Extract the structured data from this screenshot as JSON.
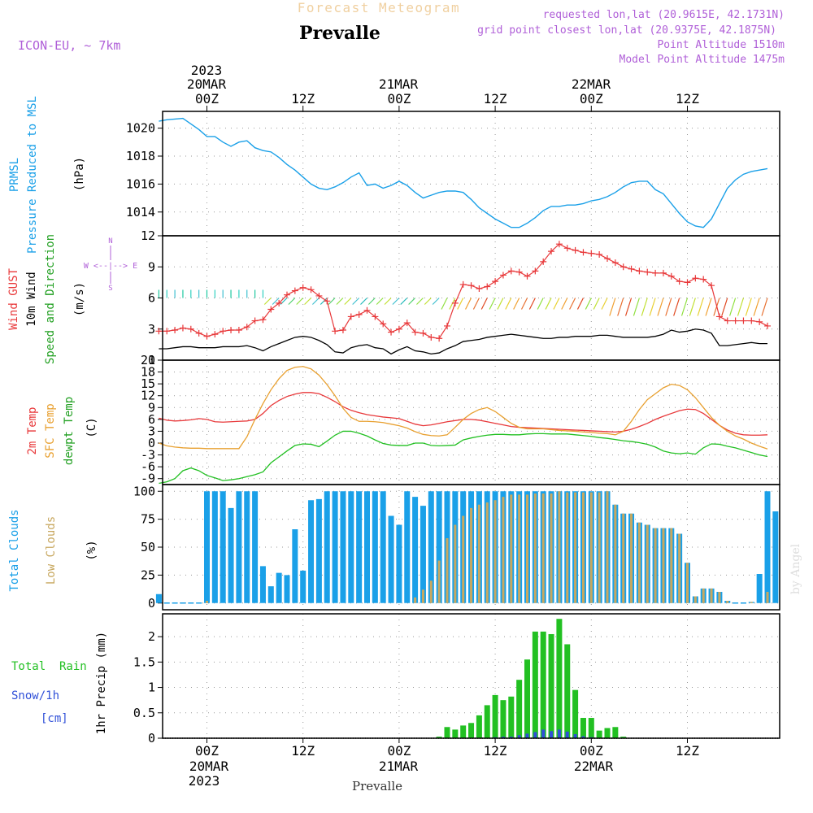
{
  "header": {
    "title": "Forecast Meteogram",
    "station": "Prevalle",
    "model": "ICON-EU, ~ 7km",
    "requested": "requested lon,lat (20.9615E, 42.1731N)",
    "gridpoint": "grid point closest lon,lat (20.9375E, 42.1875N)",
    "point_altitude": "Point Altitude 1510m",
    "model_altitude": "Model Point Altitude 1475m",
    "footer_station": "Prevalle",
    "watermark": "by Angel"
  },
  "axes": {
    "top_year": "2023",
    "top_date1": "20MAR",
    "top_date2": "21MAR",
    "top_date3": "22MAR",
    "bottom_date1": "20MAR",
    "bottom_date2": "21MAR",
    "bottom_date3": "22MAR",
    "bottom_year": "2023",
    "time_ticks": [
      "00Z",
      "12Z",
      "00Z",
      "12Z",
      "00Z",
      "12Z"
    ]
  },
  "labels": {
    "prmsl": "PRMSL",
    "pressure": "Pressure Reduced to MSL",
    "hpa": "(hPa)",
    "wind_gust": "Wind GUST",
    "wind_10m": "10m Wind",
    "wind_speed_dir": "Speed and Direction",
    "ms": "(m/s)",
    "compass_n": "N",
    "compass_s": "S",
    "compass_w": "W <--|--> E",
    "temp2m": "2m Temp",
    "sfc_temp": "SFC Temp",
    "dewpt": "dewpt Temp",
    "c": "(C)",
    "total_clouds": "Total Clouds",
    "low_clouds": "Low Clouds",
    "pct": "(%)",
    "total_rain": "Total  Rain",
    "snow": "Snow/1h",
    "cm": "[cm]",
    "precip": "1hr Precip (mm)"
  },
  "colors": {
    "pressure": "#1aa0e8",
    "gust": "#e8383a",
    "wind10": "#000000",
    "temp2m": "#e8383a",
    "sfc": "#e8a030",
    "dewpt": "#22c022",
    "total_clouds": "#1aa0e8",
    "low_clouds": "#c8a860",
    "rain": "#22c022",
    "snow": "#3050d8",
    "meta": "#b060d8",
    "title": "#f0d0a0"
  },
  "chart_data": [
    {
      "type": "line",
      "title": "PRMSL Pressure Reduced to MSL",
      "ylabel": "(hPa)",
      "ylim": [
        1012.3,
        1021.2
      ],
      "yticks": [
        1014,
        1016,
        1018,
        1020
      ],
      "x_hours": [
        -6,
        -5,
        -3,
        -2,
        -1,
        0,
        1,
        2,
        3,
        4,
        5,
        6,
        7,
        8,
        9,
        10,
        11,
        12,
        13,
        14,
        15,
        16,
        17,
        18,
        19,
        20,
        21,
        22,
        23,
        24,
        25,
        26,
        27,
        28,
        29,
        30,
        31,
        32,
        33,
        34,
        35,
        36,
        37,
        38,
        39,
        40,
        41,
        42,
        43,
        44,
        45,
        46,
        47,
        48,
        49,
        50,
        51,
        52,
        53,
        54,
        55,
        56,
        57,
        58,
        59,
        60,
        61,
        62,
        63,
        64,
        65,
        66,
        67,
        68,
        69,
        70
      ],
      "values": [
        1020.5,
        1020.6,
        1020.7,
        1020.3,
        1019.9,
        1019.4,
        1019.4,
        1019.0,
        1018.7,
        1019.0,
        1019.1,
        1018.6,
        1018.4,
        1018.3,
        1017.9,
        1017.4,
        1017.0,
        1016.5,
        1016.0,
        1015.7,
        1015.6,
        1015.8,
        1016.1,
        1016.5,
        1016.8,
        1015.9,
        1016.0,
        1015.7,
        1015.9,
        1016.2,
        1015.9,
        1015.4,
        1015.0,
        1015.2,
        1015.4,
        1015.5,
        1015.5,
        1015.4,
        1014.9,
        1014.3,
        1013.9,
        1013.5,
        1013.2,
        1012.9,
        1012.9,
        1013.2,
        1013.6,
        1014.1,
        1014.4,
        1014.4,
        1014.5,
        1014.5,
        1014.6,
        1014.8,
        1014.9,
        1015.1,
        1015.4,
        1015.8,
        1016.1,
        1016.2,
        1016.2,
        1015.6,
        1015.3,
        1014.6,
        1013.9,
        1013.3,
        1013.0,
        1012.9,
        1013.5,
        1014.6,
        1015.7,
        1016.3,
        1016.7,
        1016.9,
        1017.0,
        1017.1
      ]
    },
    {
      "type": "line",
      "title": "Wind GUST / 10m Wind Speed and Direction",
      "ylabel": "(m/s)",
      "ylim": [
        0,
        12
      ],
      "yticks": [
        0,
        3,
        6,
        9,
        12
      ],
      "x_hours": [
        -6,
        -5,
        -4,
        -3,
        -2,
        -1,
        0,
        1,
        2,
        3,
        4,
        5,
        6,
        7,
        8,
        9,
        10,
        11,
        12,
        13,
        14,
        15,
        16,
        17,
        18,
        19,
        20,
        21,
        22,
        23,
        24,
        25,
        26,
        27,
        28,
        29,
        30,
        31,
        32,
        33,
        34,
        35,
        36,
        37,
        38,
        39,
        40,
        41,
        42,
        43,
        44,
        45,
        46,
        47,
        48,
        49,
        50,
        51,
        52,
        53,
        54,
        55,
        56,
        57,
        58,
        59,
        60,
        61,
        62,
        63,
        64,
        65,
        66,
        67,
        68,
        69,
        70
      ],
      "series": [
        {
          "name": "Wind GUST",
          "values": [
            2.8,
            2.8,
            2.9,
            3.1,
            3.0,
            2.6,
            2.3,
            2.5,
            2.8,
            2.9,
            2.9,
            3.2,
            3.8,
            3.9,
            4.9,
            5.5,
            6.3,
            6.7,
            7.0,
            6.8,
            6.2,
            5.7,
            2.8,
            2.9,
            4.2,
            4.4,
            4.8,
            4.2,
            3.5,
            2.7,
            3.0,
            3.6,
            2.7,
            2.6,
            2.2,
            2.1,
            3.3,
            5.5,
            7.3,
            7.2,
            6.9,
            7.1,
            7.6,
            8.2,
            8.6,
            8.5,
            8.1,
            8.6,
            9.5,
            10.5,
            11.2,
            10.8,
            10.6,
            10.4,
            10.3,
            10.2,
            9.8,
            9.4,
            9.0,
            8.8,
            8.6,
            8.5,
            8.4,
            8.4,
            8.1,
            7.6,
            7.5,
            7.9,
            7.8,
            7.2,
            4.2,
            3.8,
            3.8,
            3.8,
            3.8,
            3.7,
            3.3
          ]
        },
        {
          "name": "10m Wind",
          "values": [
            1.1,
            1.1,
            1.2,
            1.3,
            1.3,
            1.2,
            1.2,
            1.2,
            1.3,
            1.3,
            1.3,
            1.4,
            1.2,
            0.9,
            1.3,
            1.6,
            1.9,
            2.2,
            2.3,
            2.2,
            1.9,
            1.5,
            0.8,
            0.7,
            1.2,
            1.4,
            1.5,
            1.2,
            1.1,
            0.6,
            1.0,
            1.3,
            0.9,
            0.8,
            0.6,
            0.7,
            1.1,
            1.4,
            1.8,
            1.9,
            2.0,
            2.2,
            2.3,
            2.4,
            2.5,
            2.4,
            2.3,
            2.2,
            2.1,
            2.1,
            2.2,
            2.2,
            2.3,
            2.3,
            2.3,
            2.4,
            2.4,
            2.3,
            2.2,
            2.2,
            2.2,
            2.2,
            2.3,
            2.5,
            2.9,
            2.7,
            2.8,
            3.0,
            2.9,
            2.6,
            1.4,
            1.4,
            1.5,
            1.6,
            1.7,
            1.6,
            1.6
          ]
        }
      ]
    },
    {
      "type": "line",
      "title": "2m Temp / SFC Temp / dewpt Temp",
      "ylabel": "(C)",
      "ylim": [
        -10.5,
        21
      ],
      "yticks": [
        -9,
        -6,
        -3,
        0,
        3,
        6,
        9,
        12,
        15,
        18,
        21
      ],
      "x_hours": [
        -6,
        -5,
        -4,
        -3,
        -2,
        -1,
        0,
        1,
        2,
        3,
        4,
        5,
        6,
        7,
        8,
        9,
        10,
        11,
        12,
        13,
        14,
        15,
        16,
        17,
        18,
        19,
        20,
        21,
        22,
        23,
        24,
        25,
        26,
        27,
        28,
        29,
        30,
        31,
        32,
        33,
        34,
        35,
        36,
        37,
        38,
        39,
        40,
        41,
        42,
        43,
        44,
        45,
        46,
        47,
        48,
        49,
        50,
        51,
        52,
        53,
        54,
        55,
        56,
        57,
        58,
        59,
        60,
        61,
        62,
        63,
        64,
        65,
        66,
        67,
        68,
        69,
        70
      ],
      "series": [
        {
          "name": "2m Temp",
          "values": [
            6.3,
            5.8,
            5.6,
            5.7,
            5.9,
            6.2,
            6.0,
            5.4,
            5.3,
            5.4,
            5.5,
            5.6,
            6.0,
            7.5,
            9.5,
            10.8,
            11.8,
            12.4,
            12.8,
            12.8,
            12.5,
            11.6,
            10.5,
            9.2,
            8.3,
            7.7,
            7.2,
            6.9,
            6.6,
            6.4,
            6.2,
            5.5,
            4.8,
            4.4,
            4.6,
            5.0,
            5.4,
            5.7,
            6.0,
            6.0,
            5.8,
            5.4,
            5.0,
            4.6,
            4.2,
            4.0,
            3.9,
            3.8,
            3.7,
            3.6,
            3.5,
            3.4,
            3.3,
            3.2,
            3.1,
            3.0,
            2.9,
            2.8,
            3.0,
            3.5,
            4.2,
            5.0,
            6.0,
            6.8,
            7.5,
            8.2,
            8.6,
            8.5,
            7.5,
            6.0,
            4.5,
            3.3,
            2.5,
            2.1,
            2.0,
            2.0,
            2.1
          ]
        },
        {
          "name": "SFC Temp",
          "values": [
            0.0,
            -0.7,
            -1.0,
            -1.2,
            -1.3,
            -1.3,
            -1.4,
            -1.4,
            -1.4,
            -1.4,
            -1.4,
            1.6,
            6.0,
            10.0,
            13.5,
            16.3,
            18.4,
            19.2,
            19.4,
            18.8,
            17.2,
            14.8,
            12.0,
            8.8,
            6.5,
            5.5,
            5.5,
            5.4,
            5.2,
            4.8,
            4.4,
            3.8,
            2.9,
            2.2,
            1.9,
            1.8,
            2.1,
            4.0,
            6.0,
            7.5,
            8.5,
            9.0,
            8.0,
            6.5,
            5.0,
            4.0,
            3.6,
            3.6,
            3.6,
            3.4,
            3.2,
            3.1,
            3.0,
            2.8,
            2.7,
            2.5,
            2.4,
            2.1,
            3.0,
            5.5,
            8.5,
            11.0,
            12.5,
            14.0,
            14.9,
            14.6,
            13.5,
            11.5,
            9.0,
            6.5,
            4.5,
            3.0,
            1.8,
            1.0,
            0.0,
            -0.8,
            -1.5
          ]
        },
        {
          "name": "dewpt Temp",
          "values": [
            -10.2,
            -9.8,
            -9.0,
            -7.0,
            -6.3,
            -7.0,
            -8.2,
            -8.8,
            -9.5,
            -9.3,
            -9.0,
            -8.5,
            -8.0,
            -7.3,
            -5.0,
            -3.5,
            -2.0,
            -0.6,
            -0.2,
            -0.3,
            -0.9,
            0.5,
            2.0,
            3.0,
            3.0,
            2.5,
            1.8,
            0.8,
            -0.1,
            -0.5,
            -0.6,
            -0.6,
            0.0,
            0.0,
            -0.6,
            -0.7,
            -0.6,
            -0.5,
            0.8,
            1.3,
            1.7,
            2.0,
            2.2,
            2.2,
            2.1,
            2.1,
            2.3,
            2.4,
            2.4,
            2.3,
            2.3,
            2.3,
            2.1,
            1.9,
            1.7,
            1.4,
            1.2,
            0.9,
            0.6,
            0.4,
            0.1,
            -0.3,
            -1.0,
            -2.0,
            -2.5,
            -2.7,
            -2.5,
            -2.8,
            -1.2,
            -0.2,
            -0.3,
            -0.8,
            -1.2,
            -1.8,
            -2.4,
            -3.0,
            -3.4
          ]
        }
      ]
    },
    {
      "type": "bar",
      "title": "Total Clouds / Low Clouds",
      "ylabel": "(%)",
      "ylim": [
        -6,
        106
      ],
      "yticks": [
        0,
        25,
        50,
        75,
        100
      ],
      "x_hours": [
        -6,
        -5,
        -4,
        -3,
        -2,
        -1,
        0,
        1,
        2,
        3,
        4,
        5,
        6,
        7,
        8,
        9,
        10,
        11,
        12,
        13,
        14,
        15,
        16,
        17,
        18,
        19,
        20,
        21,
        22,
        23,
        24,
        25,
        26,
        27,
        28,
        29,
        30,
        31,
        32,
        33,
        34,
        35,
        36,
        37,
        38,
        39,
        40,
        41,
        42,
        43,
        44,
        45,
        46,
        47,
        48,
        49,
        50,
        51,
        52,
        53,
        54,
        55,
        56,
        57,
        58,
        59,
        60,
        61,
        62,
        63,
        64,
        65,
        66,
        67,
        68,
        69,
        70,
        71
      ],
      "series": [
        {
          "name": "Total Clouds",
          "values": [
            8,
            0,
            0,
            0,
            0,
            0,
            100,
            100,
            100,
            85,
            100,
            100,
            100,
            33,
            15,
            27,
            25,
            66,
            29,
            92,
            93,
            100,
            100,
            100,
            100,
            100,
            100,
            100,
            100,
            78,
            70,
            100,
            95,
            87,
            100,
            100,
            100,
            100,
            100,
            100,
            100,
            100,
            100,
            100,
            100,
            100,
            100,
            100,
            100,
            100,
            100,
            100,
            100,
            100,
            100,
            100,
            100,
            88,
            80,
            80,
            72,
            70,
            67,
            67,
            67,
            62,
            36,
            6,
            13,
            13,
            10,
            2,
            0,
            0,
            1,
            26,
            100,
            82
          ]
        },
        {
          "name": "Low Clouds",
          "values": [
            0,
            0,
            0,
            0,
            0,
            0,
            2,
            0,
            0,
            0,
            0,
            0,
            0,
            0,
            0,
            0,
            0,
            0,
            0,
            0,
            0,
            0,
            0,
            0,
            0,
            0,
            0,
            0,
            0,
            0,
            0,
            0,
            5,
            12,
            20,
            38,
            58,
            70,
            78,
            85,
            88,
            90,
            92,
            95,
            97,
            97,
            97,
            98,
            98,
            98,
            100,
            99,
            99,
            99,
            99,
            99,
            100,
            88,
            80,
            80,
            72,
            70,
            67,
            67,
            67,
            62,
            36,
            6,
            13,
            13,
            10,
            2,
            0,
            0,
            1,
            0,
            10,
            0
          ]
        }
      ]
    },
    {
      "type": "bar",
      "title": "1hr Precip (mm)",
      "ylabel": "1hr Precip (mm)",
      "ylim": [
        0,
        2.45
      ],
      "yticks": [
        0,
        0.5,
        1,
        1.5,
        2
      ],
      "x_hours": [
        29,
        30,
        31,
        32,
        33,
        34,
        35,
        36,
        37,
        38,
        39,
        40,
        41,
        42,
        43,
        44,
        45,
        46,
        47,
        48,
        49,
        50,
        51,
        52,
        53,
        54,
        55,
        56,
        57
      ],
      "series": [
        {
          "name": "Total Rain",
          "values": [
            0.03,
            0.22,
            0.17,
            0.25,
            0.3,
            0.45,
            0.65,
            0.85,
            0.75,
            0.82,
            1.15,
            1.55,
            2.1,
            2.1,
            2.05,
            2.35,
            1.85,
            0.95,
            0.4,
            0.4,
            0.15,
            0.2,
            0.22,
            0.03,
            0,
            0,
            0,
            0,
            0
          ]
        },
        {
          "name": "Snow/1h",
          "values": [
            0,
            0,
            0,
            0,
            0,
            0,
            0,
            0.02,
            0.03,
            0.03,
            0.06,
            0.09,
            0.12,
            0.17,
            0.14,
            0.17,
            0.13,
            0.08,
            0.04,
            0.02,
            0,
            0,
            0,
            0,
            0,
            0,
            0,
            0,
            0
          ]
        }
      ]
    }
  ]
}
